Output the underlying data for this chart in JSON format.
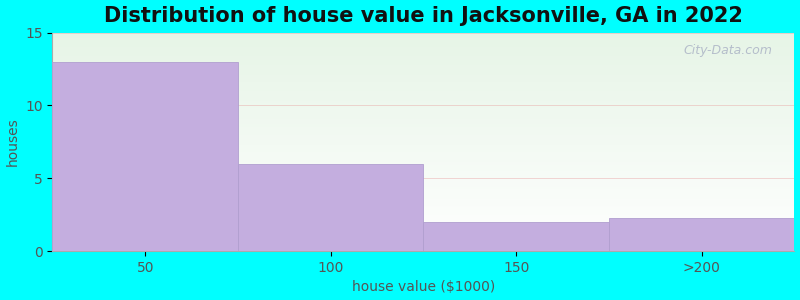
{
  "title": "Distribution of house value in Jacksonville, GA in 2022",
  "xlabel": "house value ($1000)",
  "ylabel": "houses",
  "categories": [
    "50",
    "100",
    "150",
    ">200"
  ],
  "values": [
    13,
    6,
    2,
    2.3
  ],
  "bar_color": "#C4AEDF",
  "bar_edgecolor": "#B09FCF",
  "ylim": [
    0,
    15
  ],
  "yticks": [
    0,
    5,
    10,
    15
  ],
  "background_color": "#00FFFF",
  "plot_bg_top": "#E8F5E9",
  "plot_bg_bottom": "#FFFFFF",
  "title_fontsize": 15,
  "axis_label_fontsize": 10,
  "tick_fontsize": 10,
  "watermark_text": "City-Data.com",
  "grid_color": "#E8A0A0",
  "grid_alpha": 0.5
}
